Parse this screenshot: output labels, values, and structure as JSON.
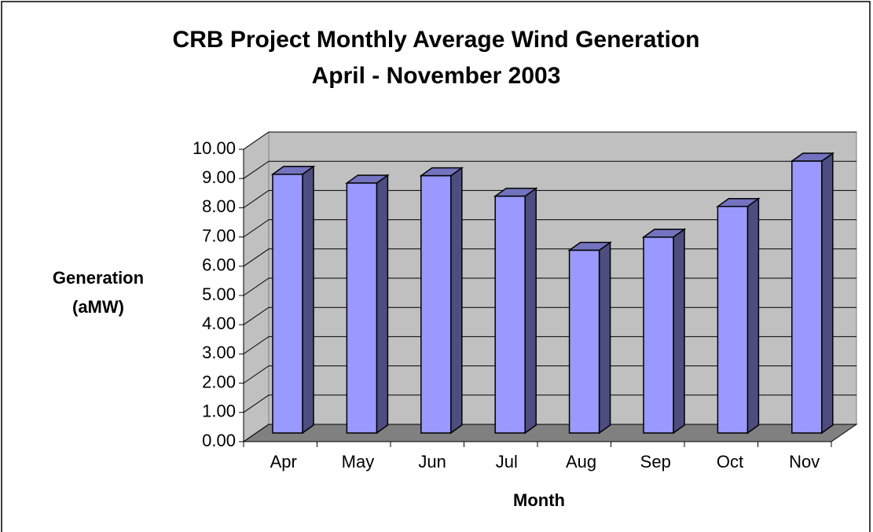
{
  "chart_data": {
    "type": "bar3d",
    "title": "CRB Project Monthly Average Wind Generation",
    "subtitle": "April - November 2003",
    "ylabel": [
      "Generation",
      "(aMW)"
    ],
    "xlabel": "Month",
    "categories": [
      "Apr",
      "May",
      "Jun",
      "Jul",
      "Aug",
      "Sep",
      "Oct",
      "Nov"
    ],
    "values": [
      8.85,
      8.55,
      8.8,
      8.1,
      6.25,
      6.7,
      7.75,
      9.3
    ],
    "color": "#9999ff",
    "ylim": [
      0,
      10
    ],
    "yticks": [
      {
        "value": 0,
        "label": "0.00"
      },
      {
        "value": 1,
        "label": "1.00"
      },
      {
        "value": 2,
        "label": "2.00"
      },
      {
        "value": 3,
        "label": "3.00"
      },
      {
        "value": 4,
        "label": "4.00"
      },
      {
        "value": 5,
        "label": "5.00"
      },
      {
        "value": 6,
        "label": "6.00"
      },
      {
        "value": 7,
        "label": "7.00"
      },
      {
        "value": 8,
        "label": "8.00"
      },
      {
        "value": 9,
        "label": "9.00"
      },
      {
        "value": 10,
        "label": "10.00"
      }
    ],
    "grid": true
  }
}
